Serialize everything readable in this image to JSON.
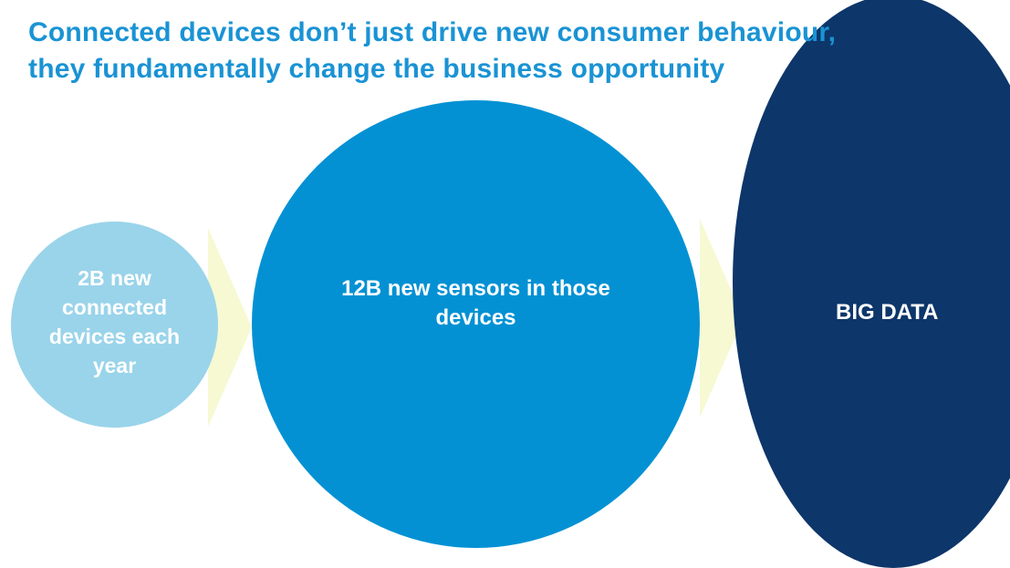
{
  "title": {
    "line1": "Connected devices don’t just drive new consumer behaviour,",
    "line2": "they fundamentally change the business opportunity"
  },
  "colors": {
    "title": "#1a93d4",
    "circle_small": "#9ad4ea",
    "circle_medium": "#0391d4",
    "circle_big": "#0d366a",
    "arrow": "#f6f9d2",
    "text": "#ffffff"
  },
  "stages": [
    {
      "label": "2B new connected devices each year"
    },
    {
      "label": "12B new sensors in those devices"
    },
    {
      "label": "BIG DATA"
    }
  ]
}
